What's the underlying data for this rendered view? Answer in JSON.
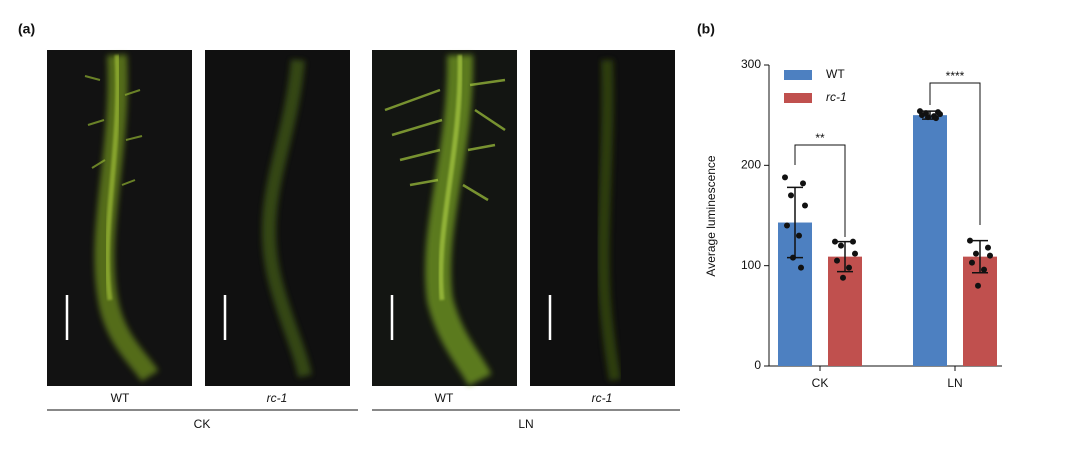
{
  "panel_a": {
    "label": "(a)",
    "images": [
      "WT",
      "rc-1",
      "WT",
      "rc-1"
    ],
    "groups": [
      "CK",
      "LN"
    ]
  },
  "chart_data": {
    "type": "bar",
    "panel_label": "(b)",
    "ylabel": "Average luminescence",
    "categories": [
      "CK",
      "LN"
    ],
    "series": [
      {
        "name": "WT",
        "color": "#4d80c1",
        "values": [
          143,
          250
        ],
        "errors": [
          35,
          4
        ],
        "points": [
          [
            188,
            182,
            170,
            160,
            140,
            130,
            108,
            98
          ],
          [
            254,
            253,
            252,
            251,
            250,
            249,
            248,
            247
          ]
        ]
      },
      {
        "name": "rc-1",
        "color": "#c0504e",
        "values": [
          109,
          109
        ],
        "errors": [
          15,
          16
        ],
        "points": [
          [
            124,
            124,
            120,
            112,
            105,
            98,
            88
          ],
          [
            125,
            118,
            112,
            110,
            103,
            96,
            80
          ]
        ]
      }
    ],
    "annotations": [
      "**",
      "****"
    ],
    "ylim": [
      0,
      300
    ],
    "yticks": [
      0,
      100,
      200,
      300
    ]
  }
}
